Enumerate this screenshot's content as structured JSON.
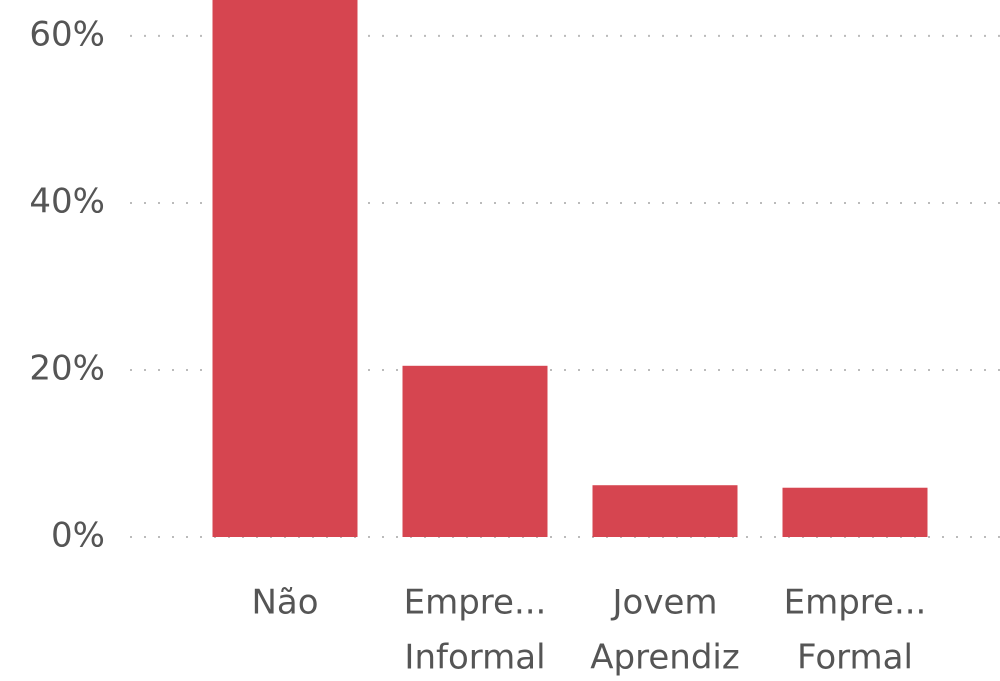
{
  "chart_data": {
    "type": "bar",
    "categories": [
      [
        "Não"
      ],
      [
        "Empre...",
        "Informal"
      ],
      [
        "Jovem",
        "Aprendiz"
      ],
      [
        "Empre...",
        "Formal"
      ]
    ],
    "values": [
      66,
      20.5,
      6.2,
      5.9
    ],
    "color": "#d64550",
    "ylim": [
      0,
      64.3
    ],
    "yticks": [
      {
        "value": 0,
        "label": "0%"
      },
      {
        "value": 20,
        "label": "20%"
      },
      {
        "value": 40,
        "label": "40%"
      },
      {
        "value": 60,
        "label": "60%"
      }
    ],
    "grid": true
  }
}
